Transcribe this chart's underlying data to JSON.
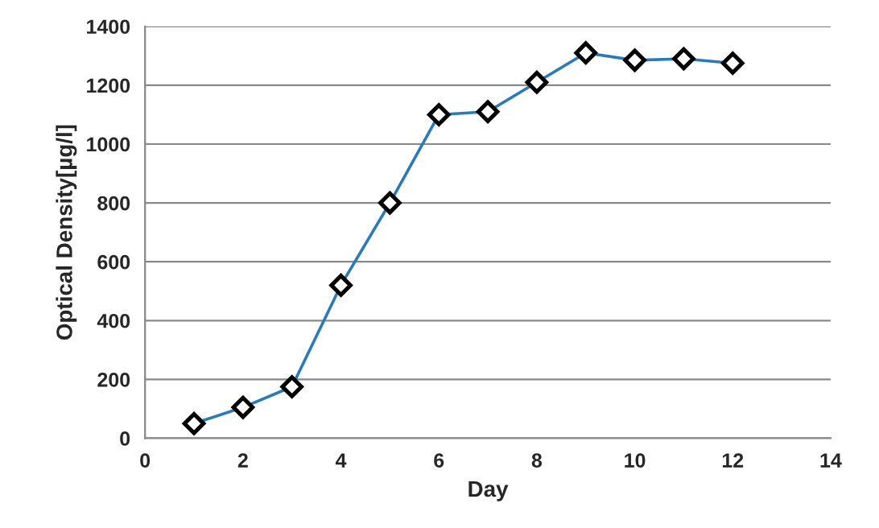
{
  "chart_data": {
    "type": "line",
    "xlabel": "Day",
    "ylabel": "Optical Density[µg/l]",
    "x": [
      1,
      2,
      3,
      4,
      5,
      6,
      7,
      8,
      9,
      10,
      11,
      12
    ],
    "series": [
      {
        "color": "#2a7ab8",
        "values": [
          50,
          105,
          175,
          520,
          800,
          1100,
          1110,
          1210,
          1310,
          1285,
          1290,
          1275
        ]
      }
    ],
    "xlim": [
      0,
      14
    ],
    "xticks": [
      0,
      2,
      4,
      6,
      8,
      10,
      12,
      14
    ],
    "ylim": [
      0,
      1400
    ],
    "yticks": [
      0,
      200,
      400,
      600,
      800,
      1000,
      1200,
      1400
    ],
    "grid": "y",
    "marker": "diamond",
    "line_style": "solid",
    "legend": false
  }
}
